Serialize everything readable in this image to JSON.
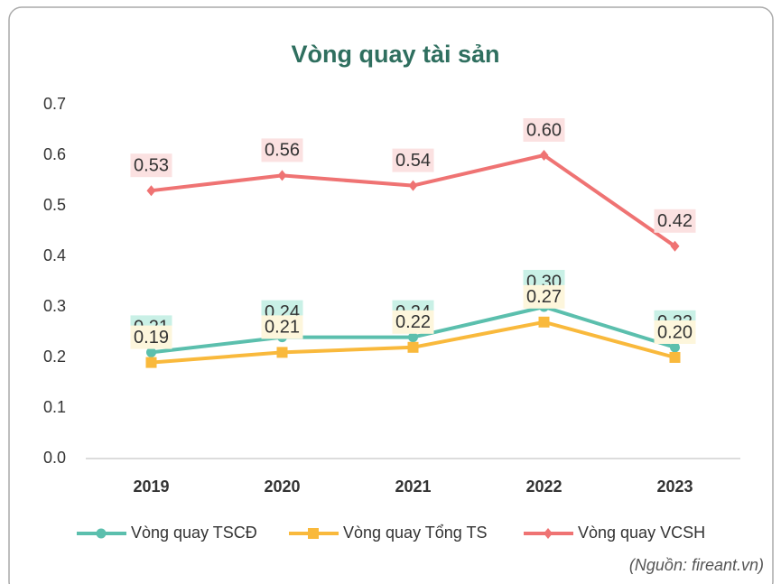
{
  "chart_data": {
    "type": "line",
    "title": "Vòng quay tài sản",
    "categories": [
      "2019",
      "2020",
      "2021",
      "2022",
      "2023"
    ],
    "series": [
      {
        "name": "Vòng quay TSCĐ",
        "color": "#5bbfad",
        "marker": "circle",
        "label_bg": "#c9f0e6",
        "values": [
          0.21,
          0.24,
          0.24,
          0.3,
          0.22
        ],
        "value_labels": [
          "0.21",
          "0.24",
          "0.24",
          "0.30",
          "0.22"
        ]
      },
      {
        "name": "Vòng quay Tổng TS",
        "color": "#f9b93c",
        "marker": "square",
        "label_bg": "#fdf6dc",
        "values": [
          0.19,
          0.21,
          0.22,
          0.27,
          0.2
        ],
        "value_labels": [
          "0.19",
          "0.21",
          "0.22",
          "0.27",
          "0.20"
        ]
      },
      {
        "name": "Vòng quay VCSH",
        "color": "#ef7373",
        "marker": "diamond",
        "label_bg": "#fbe1e1",
        "values": [
          0.53,
          0.56,
          0.54,
          0.6,
          0.42
        ],
        "value_labels": [
          "0.53",
          "0.56",
          "0.54",
          "0.60",
          "0.42"
        ]
      }
    ],
    "ylim": [
      0,
      0.7
    ],
    "yticks": [
      {
        "value": 0,
        "label": "0.0"
      },
      0.1,
      0.2,
      0.3,
      0.4,
      0.5,
      0.6,
      0.7
    ],
    "grid": false,
    "legend": "bottom",
    "source": "(Nguồn: fireant.vn)"
  }
}
